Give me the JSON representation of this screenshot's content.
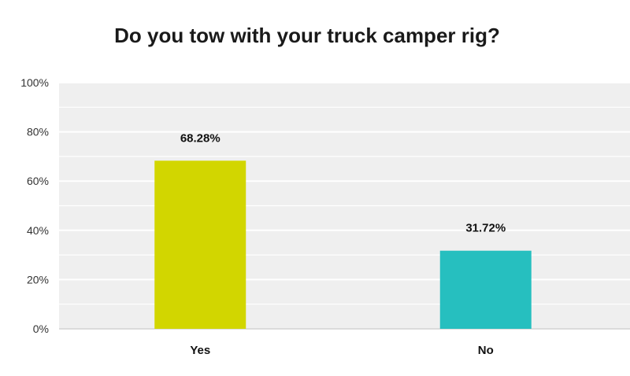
{
  "chart_data": {
    "type": "bar",
    "title": "Do you tow with your truck camper rig?",
    "xlabel": "",
    "ylabel": "",
    "categories": [
      "Yes",
      "No"
    ],
    "values": [
      68.28,
      31.72
    ],
    "data_labels": [
      "68.28%",
      "31.72%"
    ],
    "colors": [
      "#d2d600",
      "#26bfbf"
    ],
    "ylim": [
      0,
      100
    ],
    "y_ticks": [
      0,
      20,
      40,
      60,
      80,
      100
    ],
    "y_tick_labels": [
      "0%",
      "20%",
      "40%",
      "60%",
      "80%",
      "100%"
    ],
    "grid": true,
    "legend": "none",
    "plot_background": "#efefef"
  }
}
